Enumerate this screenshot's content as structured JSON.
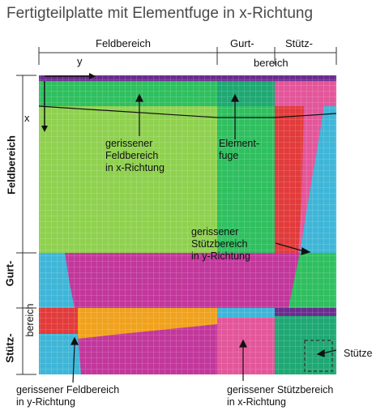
{
  "title": "Fertigteilplatte mit Elementfuge in x-Richtung",
  "top_dims": {
    "feldbereich": "Feldbereich",
    "gurt": "Gurt-",
    "stuetz": "Stütz-",
    "bereich": "bereich"
  },
  "left_dims": {
    "feldbereich": "Feldbereich",
    "gurt": "Gurt-",
    "bereich": "bereich",
    "stuetz": "Stütz-"
  },
  "axes": {
    "x": "x",
    "y": "y"
  },
  "annotations": {
    "cracked_field_x": [
      "gerissener",
      "Feldbereich",
      "in x-Richtung"
    ],
    "element_joint": [
      "Element-",
      "fuge"
    ],
    "cracked_support_y": [
      "gerissener",
      "Stützbereich",
      "in y-Richtung"
    ],
    "support": "Stütze",
    "cracked_field_y": [
      "gerissener Feldbereich",
      "in y-Richtung"
    ],
    "cracked_support_x": [
      "gerissener Stützbereich",
      "in x-Richtung"
    ]
  },
  "colors": {
    "light_green": "#8fd14f",
    "medium_green": "#2fbf5f",
    "teal_green": "#1fa873",
    "magenta": "#c2379c",
    "pink": "#e3569a",
    "red": "#e23b3b",
    "cyan": "#3fb6d8",
    "orange": "#f0a21e",
    "purple": "#6b2c8f"
  }
}
